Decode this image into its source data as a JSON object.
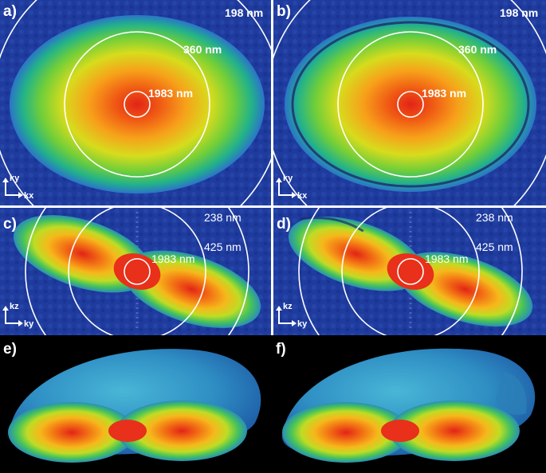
{
  "panels": {
    "a": {
      "label": "a)",
      "rings": [
        "198 nm",
        "360 nm",
        "1983 nm"
      ],
      "axes": {
        "vertical": "ky",
        "horizontal": "kx"
      }
    },
    "b": {
      "label": "b)",
      "rings": [
        "198 nm",
        "360 nm",
        "1983 nm"
      ],
      "axes": {
        "vertical": "ky",
        "horizontal": "kx"
      }
    },
    "c": {
      "label": "c)",
      "rings": [
        "238 nm",
        "425 nm",
        "1983 nm"
      ],
      "axes": {
        "vertical": "kz",
        "horizontal": "ky"
      }
    },
    "d": {
      "label": "d)",
      "rings": [
        "238 nm",
        "425 nm",
        "1983 nm"
      ],
      "axes": {
        "vertical": "kz",
        "horizontal": "ky"
      }
    },
    "e": {
      "label": "e)"
    },
    "f": {
      "label": "f)"
    }
  },
  "colors": {
    "background_blue": "#1e3a9c",
    "render_background": "#000000",
    "ring": "#ffffff",
    "center": "#e8301a"
  }
}
